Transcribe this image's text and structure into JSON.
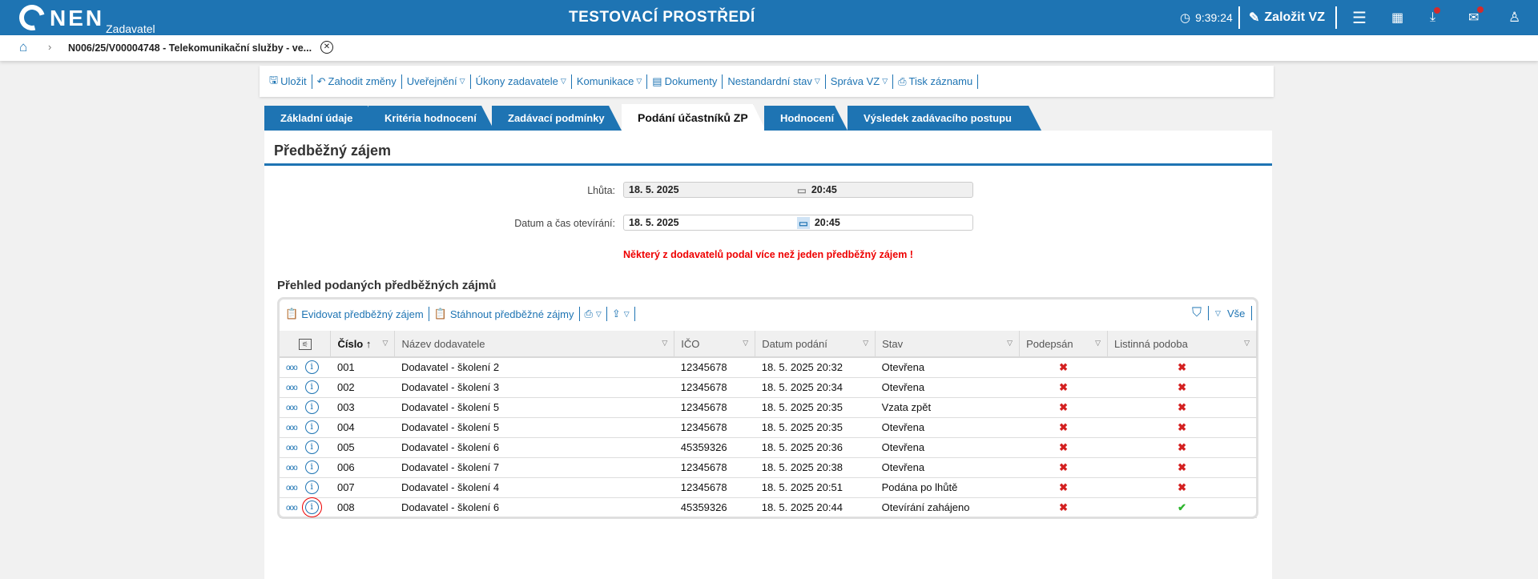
{
  "header": {
    "logo": "NEN",
    "logo_sub": "Zadavatel",
    "env_title": "TESTOVACÍ PROSTŘEDÍ",
    "time": "9:39:24",
    "create_label": "Založit VZ",
    "accent": "#1e74b3"
  },
  "breadcrumb": {
    "current": "N006/25/V00004748 - Telekomunikační služby - ve..."
  },
  "actions": [
    {
      "label": "Uložit"
    },
    {
      "label": "Zahodit změny"
    },
    {
      "label": "Uveřejnění",
      "dd": true
    },
    {
      "label": "Úkony zadavatele",
      "dd": true
    },
    {
      "label": "Komunikace",
      "dd": true
    },
    {
      "label": "Dokumenty"
    },
    {
      "label": "Nestandardní stav",
      "dd": true
    },
    {
      "label": "Správa VZ",
      "dd": true
    },
    {
      "label": "Tisk záznamu"
    }
  ],
  "tabs": [
    "Základní údaje",
    "Kritéria hodnocení",
    "Zadávací podmínky",
    "Podání účastníků ZP",
    "Hodnocení",
    "Výsledek zadávacího postupu"
  ],
  "active_tab": "Podání účastníků ZP",
  "section": {
    "title": "Předběžný zájem",
    "deadline": {
      "label": "Lhůta:",
      "date": "18. 5. 2025",
      "time": "20:45"
    },
    "opening": {
      "label": "Datum a čas otevírání:",
      "date": "18. 5. 2025",
      "time": "20:45"
    },
    "warning": "Některý z dodavatelů podal více než jeden předběžný zájem !"
  },
  "list": {
    "title": "Přehled podaných předběžných zájmů",
    "toolbar": {
      "register": "Evidovat předběžný zájem",
      "download": "Stáhnout předběžné zájmy",
      "filter_all": "Vše"
    },
    "columns": [
      "Číslo",
      "Název dodavatele",
      "IČO",
      "Datum podání",
      "Stav",
      "Podepsán",
      "Listinná podoba"
    ],
    "rows": [
      {
        "num": "001",
        "name": "Dodavatel - školení 2",
        "ico": "12345678",
        "date": "18. 5. 2025 20:32",
        "state": "Otevřena",
        "signed": false,
        "paper": false
      },
      {
        "num": "002",
        "name": "Dodavatel - školení 3",
        "ico": "12345678",
        "date": "18. 5. 2025 20:34",
        "state": "Otevřena",
        "signed": false,
        "paper": false
      },
      {
        "num": "003",
        "name": "Dodavatel - školení 5",
        "ico": "12345678",
        "date": "18. 5. 2025 20:35",
        "state": "Vzata zpět",
        "signed": false,
        "paper": false
      },
      {
        "num": "004",
        "name": "Dodavatel - školení 5",
        "ico": "12345678",
        "date": "18. 5. 2025 20:35",
        "state": "Otevřena",
        "signed": false,
        "paper": false
      },
      {
        "num": "005",
        "name": "Dodavatel - školení 6",
        "ico": "45359326",
        "date": "18. 5. 2025 20:36",
        "state": "Otevřena",
        "signed": false,
        "paper": false
      },
      {
        "num": "006",
        "name": "Dodavatel - školení 7",
        "ico": "12345678",
        "date": "18. 5. 2025 20:38",
        "state": "Otevřena",
        "signed": false,
        "paper": false
      },
      {
        "num": "007",
        "name": "Dodavatel - školení 4",
        "ico": "12345678",
        "date": "18. 5. 2025 20:51",
        "state": "Podána po lhůtě",
        "signed": false,
        "paper": false
      },
      {
        "num": "008",
        "name": "Dodavatel - školení 6",
        "ico": "45359326",
        "date": "18. 5. 2025 20:44",
        "state": "Otevírání zahájeno",
        "signed": false,
        "paper": true
      }
    ]
  }
}
